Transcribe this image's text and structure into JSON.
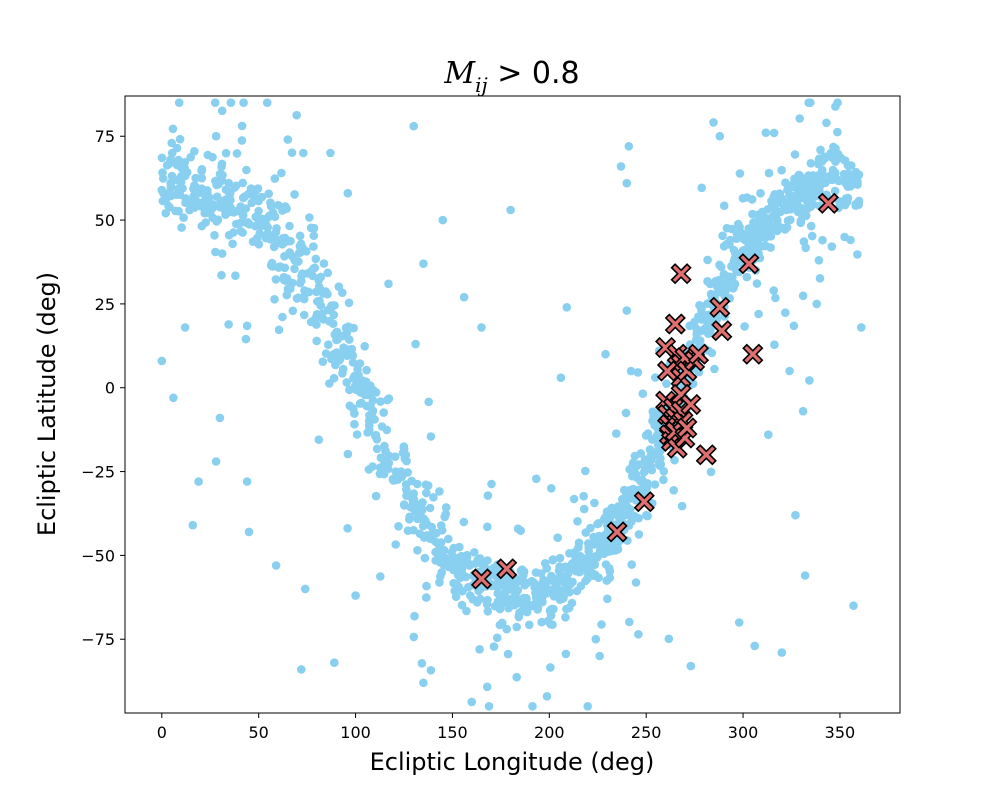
{
  "chart_data": {
    "type": "scatter",
    "title": "M_ij > 0.8",
    "title_parts": {
      "base": "M",
      "sub": "ij",
      "rest": " > 0.8"
    },
    "xlabel": "Ecliptic Longitude (deg)",
    "ylabel": "Ecliptic Latitude (deg)",
    "xlim": [
      -19,
      381
    ],
    "ylim": [
      -97,
      87
    ],
    "xticks": [
      0,
      50,
      100,
      150,
      200,
      250,
      300,
      350
    ],
    "yticks": [
      -75,
      -50,
      -25,
      0,
      25,
      50,
      75
    ],
    "ytick_labels": [
      "−75",
      "−50",
      "−25",
      "0",
      "25",
      "50",
      "75"
    ],
    "grid": false,
    "legend": "none",
    "series": [
      {
        "marker": "circle",
        "color": "#89CFF0",
        "band": [
          [
            0,
            62
          ],
          [
            10,
            60
          ],
          [
            20,
            59
          ],
          [
            30,
            57
          ],
          [
            40,
            55
          ],
          [
            50,
            50
          ],
          [
            60,
            43
          ],
          [
            70,
            36
          ],
          [
            80,
            27
          ],
          [
            90,
            15
          ],
          [
            100,
            3
          ],
          [
            110,
            -10
          ],
          [
            120,
            -23
          ],
          [
            130,
            -34
          ],
          [
            140,
            -44
          ],
          [
            150,
            -52
          ],
          [
            160,
            -57
          ],
          [
            170,
            -59
          ],
          [
            180,
            -60
          ],
          [
            190,
            -61
          ],
          [
            200,
            -60
          ],
          [
            210,
            -57
          ],
          [
            220,
            -52
          ],
          [
            230,
            -45
          ],
          [
            240,
            -36
          ],
          [
            250,
            -25
          ],
          [
            260,
            -12
          ],
          [
            270,
            3
          ],
          [
            280,
            18
          ],
          [
            290,
            31
          ],
          [
            300,
            41
          ],
          [
            310,
            48
          ],
          [
            320,
            53
          ],
          [
            330,
            57
          ],
          [
            340,
            60
          ],
          [
            350,
            62
          ],
          [
            360,
            62
          ]
        ],
        "band_count": 1300,
        "scatter_count": 230,
        "outliers": [
          [
            130,
            78
          ],
          [
            343,
            79
          ],
          [
            316,
            76
          ],
          [
            65,
            74
          ],
          [
            28,
            75
          ],
          [
            241,
            72
          ],
          [
            73,
            70
          ],
          [
            87,
            70
          ],
          [
            180,
            53
          ],
          [
            131,
            13
          ],
          [
            165,
            18
          ],
          [
            135,
            37
          ],
          [
            145,
            50
          ],
          [
            156,
            27
          ],
          [
            96,
            58
          ],
          [
            117,
            31
          ],
          [
            0,
            8
          ],
          [
            6,
            -3
          ],
          [
            12,
            18
          ],
          [
            16,
            -41
          ],
          [
            19,
            -28
          ],
          [
            28,
            -22
          ],
          [
            30,
            -9
          ],
          [
            45,
            -43
          ],
          [
            44,
            -28
          ],
          [
            59,
            -53
          ],
          [
            72,
            -84
          ],
          [
            74,
            -60
          ],
          [
            89,
            -82
          ],
          [
            100,
            -62
          ],
          [
            126,
            -20
          ],
          [
            135,
            -88
          ],
          [
            164,
            -78
          ],
          [
            178,
            -72
          ],
          [
            224,
            -75
          ],
          [
            226,
            -80
          ],
          [
            237,
            66
          ],
          [
            273,
            -83
          ],
          [
            298,
            -70
          ],
          [
            306,
            -77
          ],
          [
            320,
            -79
          ],
          [
            332,
            -56
          ],
          [
            357,
            -65
          ],
          [
            338,
            25
          ],
          [
            361,
            18
          ],
          [
            341,
            44
          ],
          [
            324,
            5
          ],
          [
            288,
            75
          ],
          [
            308,
            22
          ],
          [
            313,
            -14
          ],
          [
            327,
            -38
          ],
          [
            331,
            -7
          ],
          [
            209,
            24
          ],
          [
            240,
            61
          ],
          [
            240,
            23
          ],
          [
            229,
            10
          ],
          [
            201,
            -30
          ],
          [
            206,
            3
          ]
        ]
      },
      {
        "marker": "x",
        "color": "#E07070",
        "edge_color": "#000000",
        "points": [
          [
            165,
            -57
          ],
          [
            178,
            -54
          ],
          [
            235,
            -43
          ],
          [
            249,
            -34
          ],
          [
            260,
            12
          ],
          [
            261,
            5
          ],
          [
            265,
            19
          ],
          [
            268,
            34
          ],
          [
            266,
            10
          ],
          [
            268,
            7
          ],
          [
            268,
            3
          ],
          [
            270,
            9
          ],
          [
            271,
            5
          ],
          [
            275,
            8
          ],
          [
            277,
            10
          ],
          [
            260,
            -4
          ],
          [
            261,
            -8
          ],
          [
            262,
            -11
          ],
          [
            262,
            -14
          ],
          [
            263,
            -16
          ],
          [
            264,
            -6
          ],
          [
            265,
            -9
          ],
          [
            265,
            -13
          ],
          [
            266,
            -18
          ],
          [
            268,
            -2
          ],
          [
            268,
            -7
          ],
          [
            269,
            -10
          ],
          [
            270,
            -15
          ],
          [
            271,
            -12
          ],
          [
            273,
            -5
          ],
          [
            288,
            24
          ],
          [
            289,
            17
          ],
          [
            281,
            -20
          ],
          [
            303,
            37
          ],
          [
            305,
            10
          ],
          [
            344,
            55
          ]
        ]
      }
    ]
  }
}
